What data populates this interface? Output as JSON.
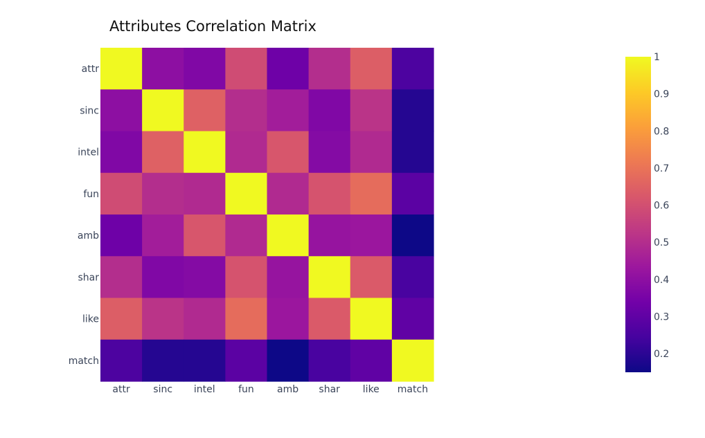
{
  "chart_data": {
    "type": "heatmap",
    "title": "Attributes Correlation Matrix",
    "x": [
      "attr",
      "sinc",
      "intel",
      "fun",
      "amb",
      "shar",
      "like",
      "match"
    ],
    "y": [
      "attr",
      "sinc",
      "intel",
      "fun",
      "amb",
      "shar",
      "like",
      "match"
    ],
    "z": [
      [
        1.0,
        0.4,
        0.37,
        0.59,
        0.33,
        0.5,
        0.64,
        0.26
      ],
      [
        0.4,
        1.0,
        0.65,
        0.5,
        0.45,
        0.37,
        0.52,
        0.19
      ],
      [
        0.37,
        0.65,
        1.0,
        0.49,
        0.62,
        0.38,
        0.49,
        0.19
      ],
      [
        0.59,
        0.5,
        0.49,
        1.0,
        0.49,
        0.61,
        0.68,
        0.29
      ],
      [
        0.33,
        0.45,
        0.62,
        0.49,
        1.0,
        0.42,
        0.43,
        0.15
      ],
      [
        0.5,
        0.37,
        0.38,
        0.61,
        0.42,
        1.0,
        0.63,
        0.25
      ],
      [
        0.64,
        0.52,
        0.49,
        0.68,
        0.43,
        0.63,
        1.0,
        0.3
      ],
      [
        0.26,
        0.19,
        0.19,
        0.29,
        0.15,
        0.25,
        0.3,
        1.0
      ]
    ],
    "colorscale": "plasma",
    "zmin": 0.15,
    "zmax": 1.0,
    "colorbar": {
      "tickvals": [
        0.2,
        0.3,
        0.4,
        0.5,
        0.6,
        0.7,
        0.8,
        0.9,
        1
      ],
      "ticktext": [
        "0.2",
        "0.3",
        "0.4",
        "0.5",
        "0.6",
        "0.7",
        "0.8",
        "0.9",
        "1"
      ]
    },
    "grid": false
  }
}
